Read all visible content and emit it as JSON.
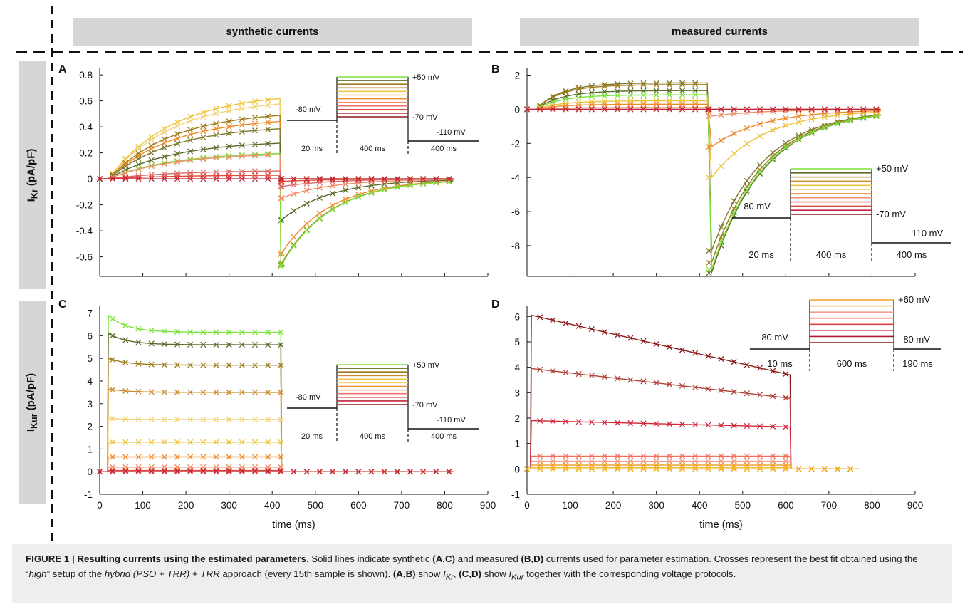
{
  "headers": {
    "left": "synthetic currents",
    "right": "measured currents"
  },
  "row_labels": {
    "top": "I",
    "top_sub": "Kr",
    "top_unit": " (pA/pF)",
    "bottom": "I",
    "bottom_sub": "Kur",
    "bottom_unit": " (pA/pF)"
  },
  "caption": {
    "lead": "FIGURE 1 | Resulting currents using the estimated parameters",
    "t1": ". Solid lines indicate synthetic ",
    "ac": "(A,C)",
    "t2": " and measured ",
    "bd": "(B,D)",
    "t3": " currents used for parameter estimation. Crosses represent the best fit obtained using the “",
    "high": "high",
    "t4": "” setup of the ",
    "approach": "hybrid (PSO + TRR) + TRR",
    "t5": " approach (every 15th sample is shown). ",
    "ab": "(A,B)",
    "t6": " show ",
    "ikr": "I",
    "ikr_sub": "Kr",
    "t7": ", ",
    "cd": "(C,D)",
    "t8": " show ",
    "ikur": "I",
    "ikur_sub": "Kur",
    "t9": " together with the corresponding voltage protocols."
  },
  "chart_data": [
    {
      "panel": "A",
      "type": "line",
      "xlim": [
        0,
        900
      ],
      "ylim": [
        -0.75,
        0.85
      ],
      "yticks": [
        -0.6,
        -0.4,
        -0.2,
        0,
        0.2,
        0.4,
        0.6,
        0.8
      ],
      "ytick_labels": [
        "-0.6",
        "-0.4",
        "-0.2",
        "0",
        "0.2",
        "0.4",
        "0.6",
        "0.8"
      ],
      "step_on": 20,
      "step_off": 420,
      "x_end": 820,
      "tau_act": 150,
      "tau_deact": 115,
      "series": [
        {
          "steady": 0.665,
          "tail": 0.0,
          "color": "#ecc33a"
        },
        {
          "steady": 0.62,
          "tail": -0.66,
          "color": "#f1d27a"
        },
        {
          "steady": 0.525,
          "tail": -0.66,
          "color": "#9d7b1c"
        },
        {
          "steady": 0.475,
          "tail": -0.58,
          "color": "#ee8a2a"
        },
        {
          "steady": 0.415,
          "tail": 0.0,
          "color": "#7c7a2e"
        },
        {
          "steady": 0.295,
          "tail": -0.32,
          "color": "#5b6b2a"
        },
        {
          "steady": 0.21,
          "tail": -0.67,
          "color": "#7ce23c"
        },
        {
          "steady": 0.2,
          "tail": -0.15,
          "color": "#f08e6a"
        },
        {
          "steady": 0.065,
          "tail": -0.06,
          "color": "#d96b6b"
        },
        {
          "steady": 0.03,
          "tail": -0.02,
          "color": "#e0483a"
        },
        {
          "steady": 0.0,
          "tail": 0.0,
          "color": "#c0283a"
        }
      ],
      "protocol": {
        "v_hold": "-80 mV",
        "v_top": "+50 mV",
        "v_bottom": "-70 mV",
        "v_tail": "-110 mV",
        "d1": "20 ms",
        "d2": "400 ms",
        "d3": "400 ms"
      }
    },
    {
      "panel": "B",
      "type": "line",
      "xlim": [
        0,
        900
      ],
      "ylim": [
        -9.8,
        2.4
      ],
      "yticks": [
        -8,
        -6,
        -4,
        -2,
        0,
        2
      ],
      "ytick_labels": [
        "-8",
        "-6",
        "-4",
        "-2",
        "0",
        "2"
      ],
      "step_on": 20,
      "step_off": 420,
      "x_end": 820,
      "tau_act": 60,
      "tau_deact": 120,
      "series": [
        {
          "steady": 1.55,
          "tail": -8.3,
          "color": "#7c7a2e"
        },
        {
          "steady": 1.45,
          "tail": -9.0,
          "color": "#9d7b1c"
        },
        {
          "steady": 1.1,
          "tail": -9.6,
          "color": "#5b6b2a"
        },
        {
          "steady": 0.85,
          "tail": -9.4,
          "color": "#7ce23c"
        },
        {
          "steady": 0.5,
          "tail": -4.0,
          "color": "#ecc33a"
        },
        {
          "steady": 0.3,
          "tail": -2.2,
          "color": "#ee8a2a"
        },
        {
          "steady": 0.1,
          "tail": -0.4,
          "color": "#f08e6a"
        },
        {
          "steady": 0.0,
          "tail": 0.0,
          "color": "#e0483a"
        },
        {
          "steady": 0.0,
          "tail": 0.0,
          "color": "#c0283a"
        }
      ],
      "protocol": {
        "v_hold": "-80 mV",
        "v_top": "+50 mV",
        "v_bottom": "-70 mV",
        "v_tail": "-110 mV",
        "d1": "20 ms",
        "d2": "400 ms",
        "d3": "400 ms"
      }
    },
    {
      "panel": "C",
      "type": "line",
      "xlim": [
        0,
        900
      ],
      "ylim": [
        -1,
        7.3
      ],
      "xlabel": "time (ms)",
      "yticks": [
        -1,
        0,
        1,
        2,
        3,
        4,
        5,
        6,
        7
      ],
      "ytick_labels": [
        "-1",
        "0",
        "1",
        "2",
        "3",
        "4",
        "5",
        "6",
        "7"
      ],
      "xticks": [
        0,
        100,
        200,
        300,
        400,
        500,
        600,
        700,
        800,
        900
      ],
      "xtick_labels": [
        "0",
        "100",
        "200",
        "300",
        "400",
        "500",
        "600",
        "700",
        "800",
        "900"
      ],
      "step_on": 20,
      "step_off": 420,
      "x_end": 820,
      "series": [
        {
          "peak": 6.9,
          "steady": 6.15,
          "color": "#7ce23c"
        },
        {
          "peak": 6.1,
          "steady": 5.6,
          "color": "#5b6b2a"
        },
        {
          "peak": 5.0,
          "steady": 4.7,
          "color": "#9d7b1c"
        },
        {
          "peak": 3.65,
          "steady": 3.5,
          "color": "#c98a2a"
        },
        {
          "peak": 2.35,
          "steady": 2.3,
          "color": "#f1d27a"
        },
        {
          "peak": 1.3,
          "steady": 1.3,
          "color": "#ecc33a"
        },
        {
          "peak": 0.65,
          "steady": 0.65,
          "color": "#ee8a2a"
        },
        {
          "peak": 0.2,
          "steady": 0.2,
          "color": "#f08e6a"
        },
        {
          "peak": 0.05,
          "steady": 0.05,
          "color": "#e0483a"
        },
        {
          "peak": 0.0,
          "steady": 0.0,
          "color": "#c0283a"
        }
      ],
      "protocol": {
        "v_hold": "-80 mV",
        "v_top": "+50 mV",
        "v_bottom": "-70 mV",
        "v_tail": "-110 mV",
        "d1": "20 ms",
        "d2": "400 ms",
        "d3": "400 ms"
      }
    },
    {
      "panel": "D",
      "type": "line",
      "xlim": [
        0,
        900
      ],
      "ylim": [
        -1,
        6.4
      ],
      "xlabel": "time (ms)",
      "yticks": [
        -1,
        0,
        1,
        2,
        3,
        4,
        5,
        6
      ],
      "ytick_labels": [
        "-1",
        "0",
        "1",
        "2",
        "3",
        "4",
        "5",
        "6"
      ],
      "xticks": [
        0,
        100,
        200,
        300,
        400,
        500,
        600,
        700,
        800,
        900
      ],
      "xtick_labels": [
        "0",
        "100",
        "200",
        "300",
        "400",
        "500",
        "600",
        "700",
        "800",
        "900"
      ],
      "step_on": 10,
      "step_off": 610,
      "x_end": 770,
      "series": [
        {
          "peak": 6.05,
          "end": 3.7,
          "color": "#8c1a1a"
        },
        {
          "peak": 3.95,
          "end": 2.78,
          "color": "#b0443a"
        },
        {
          "peak": 1.9,
          "end": 1.65,
          "color": "#d0283a"
        },
        {
          "peak": 0.5,
          "end": 0.5,
          "color": "#f07060"
        },
        {
          "peak": 0.3,
          "end": 0.3,
          "color": "#f0a090"
        },
        {
          "peak": 0.15,
          "end": 0.15,
          "color": "#f0a030"
        },
        {
          "peak": 0.05,
          "end": 0.05,
          "color": "#f8c040"
        },
        {
          "peak": 0.0,
          "end": 0.0,
          "color": "#f0b020"
        }
      ],
      "protocol": {
        "v_hold": "-80 mV",
        "v_top": "+60 mV",
        "v_tail": "-80 mV",
        "d1": "10 ms",
        "d2": "600 ms",
        "d3": "190 ms"
      }
    }
  ]
}
